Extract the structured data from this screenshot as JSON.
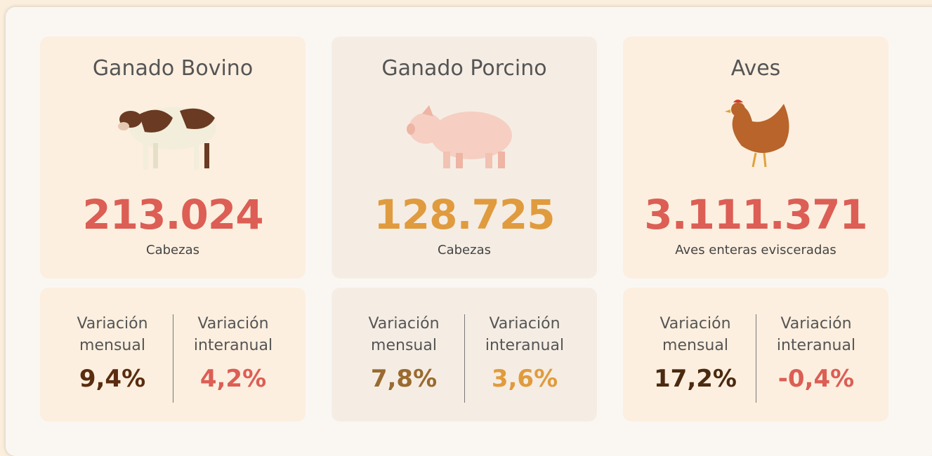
{
  "cards": [
    {
      "title": "Ganado Bovino",
      "value": "213.024",
      "unit": "Cabezas",
      "stats": [
        {
          "label": "Variación mensual",
          "value": "9,4%"
        },
        {
          "label": "Variación interanual",
          "value": "4,2%"
        }
      ]
    },
    {
      "title": "Ganado Porcino",
      "value": "128.725",
      "unit": "Cabezas",
      "stats": [
        {
          "label": "Variación mensual",
          "value": "7,8%"
        },
        {
          "label": "Variación interanual",
          "value": "3,6%"
        }
      ]
    },
    {
      "title": "Aves",
      "value": "3.111.371",
      "unit": "Aves enteras evisceradas",
      "stats": [
        {
          "label": "Variación mensual",
          "value": "17,2%"
        },
        {
          "label": "Variación interanual",
          "value": "-0,4%"
        }
      ]
    }
  ]
}
